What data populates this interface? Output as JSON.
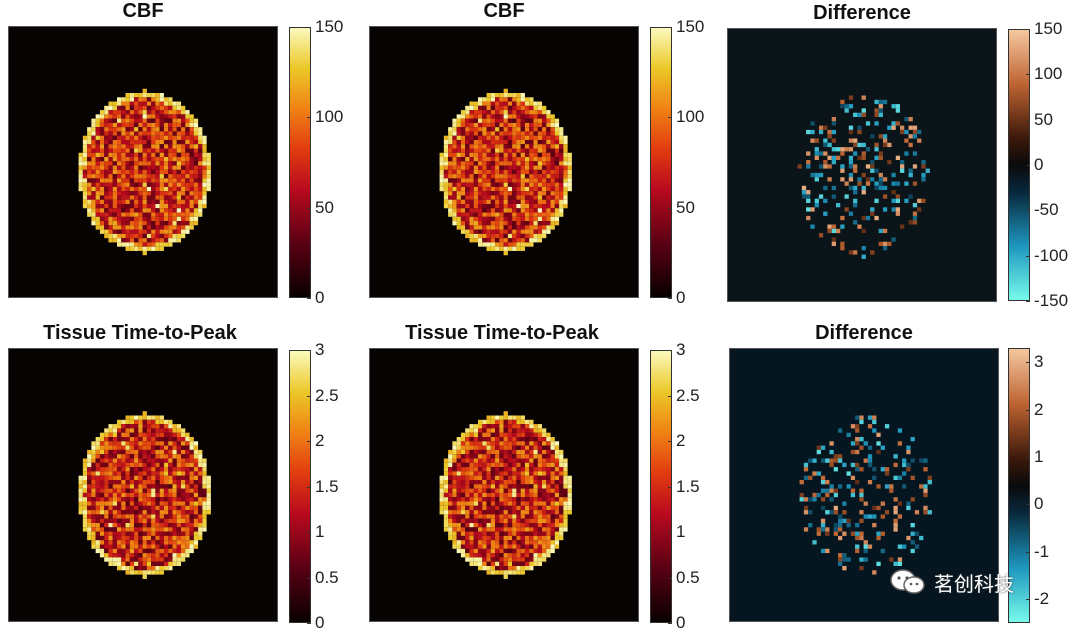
{
  "figure": {
    "panels": [
      {
        "id": "cbf-1",
        "title": "CBF",
        "colormap": "hot",
        "background": "#070303",
        "colorbar": {
          "min": 0,
          "max": 150,
          "ticks": [
            "150",
            "100",
            "50",
            "0"
          ],
          "tick_values": [
            150,
            100,
            50,
            0
          ]
        }
      },
      {
        "id": "cbf-2",
        "title": "CBF",
        "colormap": "hot",
        "background": "#070303",
        "colorbar": {
          "min": 0,
          "max": 150,
          "ticks": [
            "150",
            "100",
            "50",
            "0"
          ],
          "tick_values": [
            150,
            100,
            50,
            0
          ]
        }
      },
      {
        "id": "cbf-diff",
        "title": "Difference",
        "colormap": "diverging-cyan-black-orange",
        "background": "#0b1418",
        "colorbar": {
          "min": -150,
          "max": 150,
          "ticks": [
            "150",
            "100",
            "50",
            "0",
            "-50",
            "-100",
            "-150"
          ],
          "tick_values": [
            150,
            100,
            50,
            0,
            -50,
            -100,
            -150
          ]
        }
      },
      {
        "id": "ttp-1",
        "title": "Tissue Time-to-Peak",
        "colormap": "hot",
        "background": "#070303",
        "colorbar": {
          "min": 0,
          "max": 3,
          "ticks": [
            "3",
            "2.5",
            "2",
            "1.5",
            "1",
            "0.5",
            "0"
          ],
          "tick_values": [
            3,
            2.5,
            2,
            1.5,
            1,
            0.5,
            0
          ]
        }
      },
      {
        "id": "ttp-2",
        "title": "Tissue Time-to-Peak",
        "colormap": "hot",
        "background": "#070303",
        "colorbar": {
          "min": 0,
          "max": 3,
          "ticks": [
            "3",
            "2.5",
            "2",
            "1.5",
            "1",
            "0.5",
            "0"
          ],
          "tick_values": [
            3,
            2.5,
            2,
            1.5,
            1,
            0.5,
            0
          ]
        }
      },
      {
        "id": "ttp-diff",
        "title": "Difference",
        "colormap": "diverging-cyan-black-orange",
        "background": "#061620",
        "colorbar": {
          "min": -2.5,
          "max": 3.3,
          "ticks": [
            "3",
            "2",
            "1",
            "0",
            "-1",
            "-2"
          ],
          "tick_values": [
            3,
            2,
            1,
            0,
            -1,
            -2
          ]
        }
      }
    ]
  },
  "chart_data": [
    {
      "type": "heatmap",
      "title": "CBF",
      "colorbar_range": [
        0,
        150
      ],
      "colorbar_ticks": [
        0,
        50,
        100,
        150
      ]
    },
    {
      "type": "heatmap",
      "title": "CBF",
      "colorbar_range": [
        0,
        150
      ],
      "colorbar_ticks": [
        0,
        50,
        100,
        150
      ]
    },
    {
      "type": "heatmap",
      "title": "Difference",
      "colorbar_range": [
        -150,
        150
      ],
      "colorbar_ticks": [
        -150,
        -100,
        -50,
        0,
        50,
        100,
        150
      ]
    },
    {
      "type": "heatmap",
      "title": "Tissue Time-to-Peak",
      "colorbar_range": [
        0,
        3
      ],
      "colorbar_ticks": [
        0,
        0.5,
        1,
        1.5,
        2,
        2.5,
        3
      ]
    },
    {
      "type": "heatmap",
      "title": "Tissue Time-to-Peak",
      "colorbar_range": [
        0,
        3
      ],
      "colorbar_ticks": [
        0,
        0.5,
        1,
        1.5,
        2,
        2.5,
        3
      ]
    },
    {
      "type": "heatmap",
      "title": "Difference",
      "colorbar_range": [
        -2.5,
        3.3
      ],
      "colorbar_ticks": [
        -2,
        -1,
        0,
        1,
        2,
        3
      ]
    }
  ],
  "watermark": {
    "text": "茗创科技",
    "icon": "wechat-icon"
  }
}
